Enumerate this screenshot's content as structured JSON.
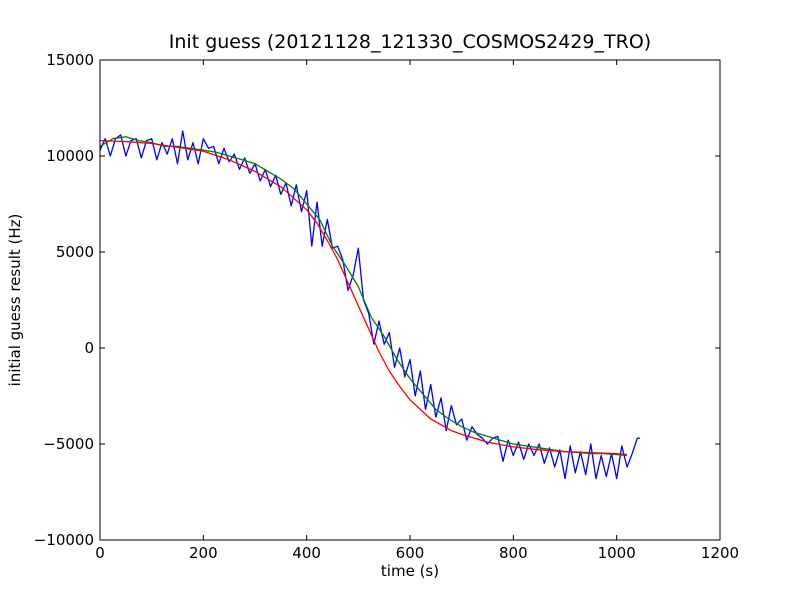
{
  "chart_data": {
    "type": "line",
    "title": "Init guess (20121128_121330_COSMOS2429_TRO)",
    "xlabel": "time (s)",
    "ylabel": "initial guess result (Hz)",
    "xlim": [
      0,
      1200
    ],
    "ylim": [
      -10000,
      15000
    ],
    "xticks": [
      0,
      200,
      400,
      600,
      800,
      1000,
      1200
    ],
    "yticks": [
      -10000,
      -5000,
      0,
      5000,
      10000,
      15000
    ],
    "grid": false,
    "series": [
      {
        "color": "#0000ff",
        "x": [
          0,
          10,
          20,
          30,
          40,
          50,
          60,
          70,
          80,
          90,
          100,
          110,
          120,
          130,
          140,
          150,
          160,
          170,
          180,
          190,
          200,
          210,
          220,
          230,
          240,
          250,
          260,
          270,
          280,
          290,
          300,
          310,
          320,
          330,
          340,
          350,
          360,
          370,
          380,
          390,
          400,
          410,
          420,
          430,
          440,
          450,
          460,
          470,
          480,
          490,
          500,
          510,
          520,
          530,
          540,
          550,
          560,
          570,
          580,
          590,
          600,
          610,
          620,
          630,
          640,
          650,
          660,
          670,
          680,
          690,
          700,
          710,
          720,
          730,
          740,
          750,
          760,
          770,
          780,
          790,
          800,
          810,
          820,
          830,
          840,
          850,
          860,
          870,
          880,
          890,
          900,
          910,
          920,
          930,
          940,
          950,
          960,
          970,
          980,
          990,
          1000,
          1010,
          1020,
          1030,
          1040,
          1045
        ],
        "values": [
          10300,
          10900,
          10000,
          10900,
          11100,
          10000,
          10800,
          10900,
          9900,
          10800,
          10900,
          9800,
          10700,
          10100,
          10900,
          9600,
          11300,
          9800,
          10700,
          9600,
          10900,
          10400,
          10500,
          9600,
          10400,
          9700,
          10100,
          9300,
          9900,
          9100,
          9600,
          8700,
          9300,
          8400,
          9000,
          8000,
          8600,
          7400,
          8500,
          7100,
          8200,
          5300,
          7600,
          5300,
          6700,
          5200,
          5300,
          4600,
          3000,
          3800,
          5200,
          2500,
          1800,
          200,
          1400,
          200,
          800,
          -1000,
          0,
          -1500,
          -600,
          -2500,
          -1200,
          -3200,
          -1900,
          -3600,
          -2600,
          -4300,
          -3000,
          -4000,
          -3700,
          -4800,
          -4100,
          -4500,
          -4700,
          -5000,
          -4700,
          -4600,
          -5900,
          -4800,
          -5600,
          -4900,
          -5800,
          -5000,
          -5600,
          -5000,
          -6000,
          -5200,
          -6200,
          -5300,
          -6800,
          -5100,
          -6500,
          -5400,
          -6600,
          -5000,
          -6800,
          -5600,
          -6700,
          -5500,
          -6800,
          -5100,
          -6200,
          -5500,
          -4700,
          -4700
        ]
      },
      {
        "color": "#008000",
        "x": [
          0,
          25,
          50,
          75,
          100,
          125,
          150,
          175,
          200,
          225,
          250,
          275,
          300,
          325,
          350,
          375,
          400,
          425,
          450,
          475,
          500,
          525,
          550,
          575,
          600,
          625,
          650,
          675,
          700,
          725,
          750,
          775,
          800,
          825,
          850,
          875,
          900,
          925,
          950,
          975,
          1000,
          1020
        ],
        "values": [
          10500,
          10900,
          11000,
          10800,
          10700,
          10500,
          10500,
          10400,
          10300,
          10200,
          10000,
          9800,
          9600,
          9200,
          8800,
          8300,
          7500,
          6700,
          5300,
          4300,
          3200,
          1600,
          600,
          -600,
          -1600,
          -2400,
          -3200,
          -3700,
          -4100,
          -4400,
          -4600,
          -4800,
          -5000,
          -5100,
          -5200,
          -5300,
          -5400,
          -5450,
          -5500,
          -5500,
          -5550,
          -5600
        ]
      },
      {
        "color": "#ff0000",
        "x": [
          0,
          50,
          100,
          150,
          200,
          250,
          300,
          350,
          400,
          420,
          440,
          460,
          480,
          500,
          520,
          540,
          560,
          580,
          600,
          620,
          640,
          660,
          680,
          700,
          750,
          800,
          850,
          900,
          950,
          1000,
          1020
        ],
        "values": [
          10800,
          10750,
          10650,
          10450,
          10250,
          9800,
          9200,
          8400,
          7200,
          6500,
          5600,
          4600,
          3400,
          2200,
          1000,
          -200,
          -1200,
          -2000,
          -2700,
          -3200,
          -3700,
          -4000,
          -4300,
          -4500,
          -4900,
          -5150,
          -5300,
          -5400,
          -5450,
          -5500,
          -5550
        ]
      }
    ]
  }
}
